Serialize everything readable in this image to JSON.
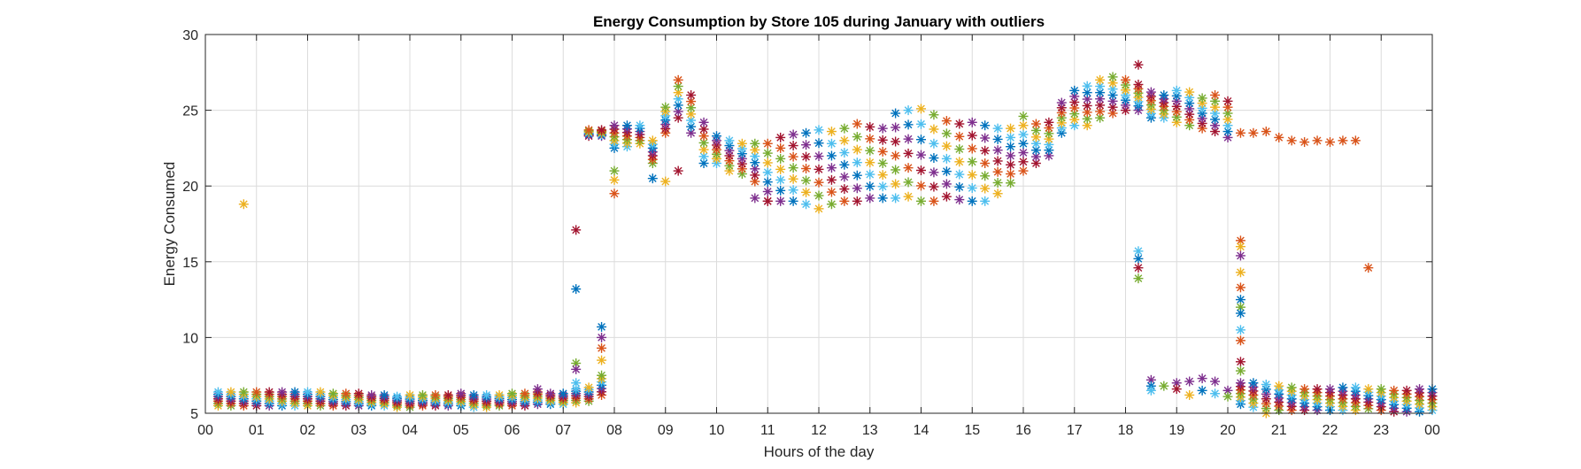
{
  "chart_data": {
    "type": "scatter",
    "title": "Energy Consumption by Store 105 during January with outliers",
    "xlabel": "Hours of the day",
    "ylabel": "Energy Consumed",
    "xlim": [
      0,
      24
    ],
    "ylim": [
      5,
      30
    ],
    "grid": true,
    "marker": "asterisk",
    "x_ticks": [
      0,
      1,
      2,
      3,
      4,
      5,
      6,
      7,
      8,
      9,
      10,
      11,
      12,
      13,
      14,
      15,
      16,
      17,
      18,
      19,
      20,
      21,
      22,
      23,
      24
    ],
    "x_tick_labels": [
      "00",
      "01",
      "02",
      "03",
      "04",
      "05",
      "06",
      "07",
      "08",
      "09",
      "10",
      "11",
      "12",
      "13",
      "14",
      "15",
      "16",
      "17",
      "18",
      "19",
      "20",
      "21",
      "22",
      "23",
      "00"
    ],
    "y_ticks": [
      5,
      10,
      15,
      20,
      25,
      30
    ],
    "y_tick_labels": [
      "5",
      "10",
      "15",
      "20",
      "25",
      "30"
    ],
    "colors": [
      "#0072BD",
      "#D95319",
      "#EDB120",
      "#7E2F8E",
      "#77AC30",
      "#4DBEEE",
      "#A2142F"
    ],
    "series_points": [
      [
        0.25,
        5.5,
        6.4
      ],
      [
        0.5,
        5.5,
        6.4
      ],
      [
        0.75,
        5.5,
        6.4
      ],
      [
        1.0,
        5.5,
        6.4
      ],
      [
        1.25,
        5.5,
        6.4
      ],
      [
        1.5,
        5.5,
        6.4
      ],
      [
        1.75,
        5.5,
        6.4
      ],
      [
        2.0,
        5.5,
        6.4
      ],
      [
        2.25,
        5.5,
        6.4
      ],
      [
        2.5,
        5.5,
        6.3
      ],
      [
        2.75,
        5.5,
        6.3
      ],
      [
        3.0,
        5.5,
        6.3
      ],
      [
        3.25,
        5.5,
        6.2
      ],
      [
        3.5,
        5.5,
        6.2
      ],
      [
        3.75,
        5.4,
        6.1
      ],
      [
        4.0,
        5.4,
        6.2
      ],
      [
        4.25,
        5.5,
        6.2
      ],
      [
        4.5,
        5.5,
        6.2
      ],
      [
        4.75,
        5.5,
        6.2
      ],
      [
        5.0,
        5.5,
        6.3
      ],
      [
        5.25,
        5.4,
        6.2
      ],
      [
        5.5,
        5.4,
        6.2
      ],
      [
        5.75,
        5.5,
        6.2
      ],
      [
        6.0,
        5.5,
        6.3
      ],
      [
        6.25,
        5.5,
        6.3
      ],
      [
        6.5,
        5.6,
        6.4
      ],
      [
        6.75,
        5.6,
        6.3
      ],
      [
        7.0,
        5.6,
        6.3
      ],
      [
        7.25,
        5.7,
        6.6
      ],
      [
        7.5,
        5.8,
        6.7
      ],
      [
        7.75,
        6.2,
        7.5
      ],
      [
        7.5,
        23.3,
        23.7
      ],
      [
        7.75,
        23.3,
        23.7
      ],
      [
        8.0,
        22.5,
        24.0
      ],
      [
        8.25,
        22.6,
        24.0
      ],
      [
        8.5,
        22.8,
        24.0
      ],
      [
        8.75,
        21.5,
        23.0
      ],
      [
        9.0,
        23.5,
        25.2
      ],
      [
        9.25,
        24.5,
        27.0
      ],
      [
        9.5,
        23.5,
        26.0
      ],
      [
        9.75,
        21.5,
        24.2
      ],
      [
        10.0,
        21.5,
        23.3
      ],
      [
        10.25,
        21.0,
        23.0
      ],
      [
        10.5,
        20.8,
        22.8
      ],
      [
        10.75,
        20.3,
        22.8
      ],
      [
        11.0,
        19.0,
        22.8
      ],
      [
        11.25,
        19.0,
        23.2
      ],
      [
        11.5,
        19.0,
        23.4
      ],
      [
        11.75,
        18.8,
        23.5
      ],
      [
        12.0,
        18.5,
        23.7
      ],
      [
        12.25,
        18.8,
        23.6
      ],
      [
        12.5,
        19.0,
        23.8
      ],
      [
        12.75,
        19.0,
        24.1
      ],
      [
        13.0,
        19.2,
        23.9
      ],
      [
        13.25,
        19.2,
        23.8
      ],
      [
        13.5,
        19.2,
        24.8
      ],
      [
        13.75,
        19.3,
        25.0
      ],
      [
        14.0,
        19.0,
        25.1
      ],
      [
        14.25,
        19.0,
        24.7
      ],
      [
        14.5,
        19.3,
        24.3
      ],
      [
        14.75,
        19.1,
        24.1
      ],
      [
        15.0,
        19.0,
        24.2
      ],
      [
        15.25,
        19.0,
        24.0
      ],
      [
        15.5,
        19.5,
        23.8
      ],
      [
        15.75,
        20.2,
        23.8
      ],
      [
        16.0,
        21.0,
        24.6
      ],
      [
        16.25,
        21.5,
        24.1
      ],
      [
        16.5,
        22.0,
        24.2
      ],
      [
        16.75,
        23.5,
        25.5
      ],
      [
        17.0,
        24.0,
        26.3
      ],
      [
        17.25,
        24.0,
        26.6
      ],
      [
        17.5,
        24.5,
        27.0
      ],
      [
        17.75,
        24.8,
        27.2
      ],
      [
        18.0,
        25.0,
        27.0
      ],
      [
        18.25,
        25.0,
        26.7
      ],
      [
        18.5,
        24.5,
        26.2
      ],
      [
        18.75,
        24.5,
        26.0
      ],
      [
        19.0,
        24.2,
        26.3
      ],
      [
        19.25,
        24.0,
        26.2
      ],
      [
        19.5,
        23.8,
        25.8
      ],
      [
        19.75,
        23.6,
        26.0
      ],
      [
        20.0,
        23.2,
        25.6
      ],
      [
        20.25,
        5.6,
        7.0
      ],
      [
        20.5,
        5.4,
        7.0
      ],
      [
        20.75,
        5.0,
        6.9
      ],
      [
        21.0,
        5.2,
        6.8
      ],
      [
        21.25,
        5.2,
        6.7
      ],
      [
        21.5,
        5.2,
        6.6
      ],
      [
        21.75,
        5.2,
        6.6
      ],
      [
        22.0,
        5.2,
        6.6
      ],
      [
        22.25,
        5.2,
        6.7
      ],
      [
        22.5,
        5.2,
        6.7
      ],
      [
        22.75,
        5.3,
        6.6
      ],
      [
        23.0,
        5.2,
        6.6
      ],
      [
        23.25,
        5.1,
        6.5
      ],
      [
        23.5,
        5.1,
        6.5
      ],
      [
        23.75,
        5.1,
        6.6
      ],
      [
        24.0,
        5.2,
        6.6
      ]
    ],
    "singletons": [
      [
        0.75,
        18.8,
        2
      ],
      [
        7.25,
        17.1,
        6
      ],
      [
        7.25,
        13.2,
        0
      ],
      [
        7.25,
        8.3,
        4
      ],
      [
        7.25,
        7.9,
        3
      ],
      [
        7.25,
        7.0,
        5
      ],
      [
        7.75,
        10.7,
        0
      ],
      [
        7.75,
        10.0,
        3
      ],
      [
        7.75,
        9.3,
        1
      ],
      [
        7.75,
        8.5,
        2
      ],
      [
        8.0,
        21.0,
        4
      ],
      [
        8.0,
        20.4,
        2
      ],
      [
        8.0,
        19.5,
        1
      ],
      [
        8.75,
        20.5,
        0
      ],
      [
        9.0,
        20.3,
        2
      ],
      [
        9.25,
        21.0,
        6
      ],
      [
        10.75,
        19.2,
        3
      ],
      [
        11.0,
        19.0,
        6
      ],
      [
        18.25,
        15.7,
        5
      ],
      [
        18.25,
        15.2,
        0
      ],
      [
        18.25,
        14.6,
        6
      ],
      [
        18.25,
        13.9,
        4
      ],
      [
        18.5,
        7.2,
        3
      ],
      [
        18.5,
        6.8,
        0
      ],
      [
        18.5,
        6.5,
        5
      ],
      [
        18.75,
        6.8,
        4
      ],
      [
        19.0,
        7.0,
        3
      ],
      [
        19.0,
        6.6,
        6
      ],
      [
        19.25,
        7.1,
        3
      ],
      [
        19.25,
        6.2,
        2
      ],
      [
        19.5,
        7.3,
        3
      ],
      [
        19.5,
        6.5,
        0
      ],
      [
        19.75,
        7.1,
        3
      ],
      [
        19.75,
        6.3,
        5
      ],
      [
        20.0,
        6.5,
        3
      ],
      [
        20.0,
        6.1,
        4
      ],
      [
        20.25,
        16.4,
        1
      ],
      [
        20.25,
        16.0,
        2
      ],
      [
        20.25,
        15.4,
        3
      ],
      [
        20.25,
        14.3,
        2
      ],
      [
        20.25,
        13.3,
        1
      ],
      [
        20.25,
        12.5,
        0
      ],
      [
        20.25,
        12.0,
        4
      ],
      [
        20.25,
        11.6,
        0
      ],
      [
        20.25,
        10.5,
        5
      ],
      [
        20.25,
        9.8,
        1
      ],
      [
        20.25,
        8.4,
        6
      ],
      [
        20.25,
        7.8,
        4
      ],
      [
        20.25,
        23.5,
        1
      ],
      [
        20.5,
        23.5,
        1
      ],
      [
        20.75,
        23.6,
        1
      ],
      [
        21.0,
        23.2,
        1
      ],
      [
        21.25,
        23.0,
        1
      ],
      [
        21.5,
        22.9,
        1
      ],
      [
        21.75,
        23.0,
        1
      ],
      [
        22.0,
        22.9,
        1
      ],
      [
        22.25,
        23.0,
        1
      ],
      [
        22.5,
        23.0,
        1
      ],
      [
        22.75,
        14.6,
        1
      ],
      [
        6.5,
        6.6,
        3
      ],
      [
        18.25,
        28.0,
        6
      ]
    ]
  }
}
